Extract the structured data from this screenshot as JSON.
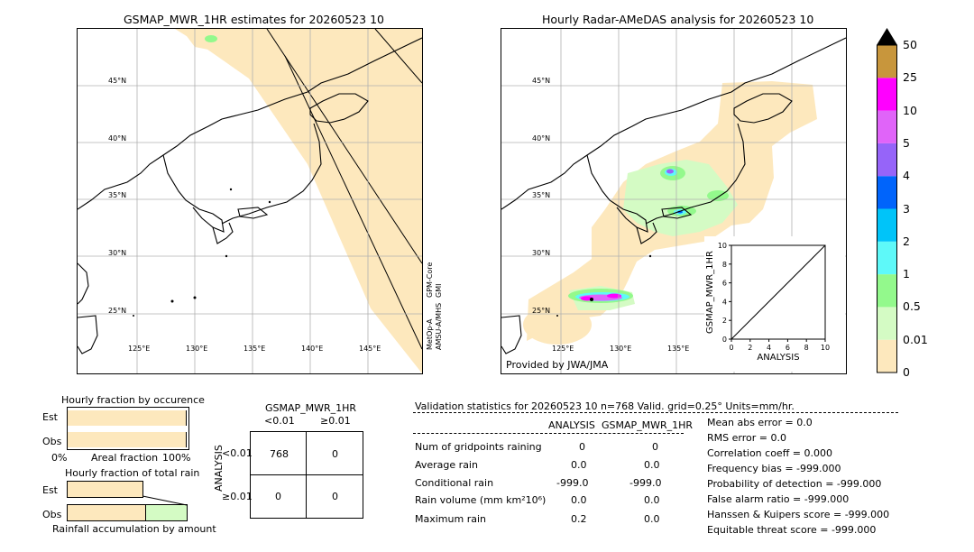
{
  "colors": {
    "no_rain": "#fde8bd",
    "light_green": "#d4fbc4",
    "green": "#93f98c",
    "cyan": "#5ef9f9",
    "sky": "#00c4f9",
    "blue": "#0064fb",
    "violet": "#9664f9",
    "purple": "#e064f9",
    "magenta": "#ff00ff",
    "gold": "#c8963c",
    "land": "#000000",
    "grid": "#b0b0b0"
  },
  "left_map": {
    "title": "GSMAP_MWR_1HR estimates for 20260523 10",
    "lat_labels": [
      "45°N",
      "40°N",
      "35°N",
      "30°N",
      "25°N"
    ],
    "lon_labels": [
      "125°E",
      "130°E",
      "135°E",
      "140°E",
      "145°E"
    ],
    "sensor_1": "GPM-Core",
    "sensor_1b": "GMI",
    "sensor_2": "MetOp-A",
    "sensor_2b": "AMSU-A/MHS"
  },
  "right_map": {
    "title": "Hourly Radar-AMeDAS analysis for 20260523 10",
    "lat_labels": [
      "45°N",
      "40°N",
      "35°N",
      "30°N",
      "25°N"
    ],
    "lon_labels": [
      "125°E",
      "130°E",
      "135°E"
    ],
    "provider": "Provided by JWA/JMA"
  },
  "colorbar": {
    "labels": [
      "50",
      "25",
      "10",
      "5",
      "4",
      "3",
      "2",
      "1",
      "0.5",
      "0.01",
      "0"
    ]
  },
  "chart_data": [
    {
      "type": "scatter",
      "title": "",
      "xlabel": "ANALYSIS",
      "ylabel": "GSMAP_MWR_1HR",
      "xlim": [
        0,
        10
      ],
      "ylim": [
        0,
        10
      ],
      "x_ticks": [
        "0",
        "2",
        "4",
        "6",
        "8",
        "10"
      ],
      "y_ticks": [
        "0",
        "2",
        "4",
        "6",
        "8",
        "10"
      ],
      "diagonal": [
        [
          0,
          0
        ],
        [
          10,
          10
        ]
      ],
      "points": []
    },
    {
      "type": "bar",
      "title": "Hourly fraction by occurence",
      "categories": [
        "Est",
        "Obs"
      ],
      "values": [
        0.99,
        0.99
      ],
      "xlabel": "Areal fraction",
      "x_ticks": [
        "0%",
        "100%"
      ],
      "xlim": [
        0,
        1
      ]
    },
    {
      "type": "bar",
      "title": "Hourly fraction of total rain",
      "categories": [
        "Est",
        "Obs"
      ],
      "values": [
        0.63,
        0.65
      ],
      "xlabel": "Rainfall accumulation by amount",
      "xlim": [
        0,
        1
      ]
    },
    {
      "type": "table",
      "title": "GSMAP_MWR_1HR",
      "col_headers": [
        "<0.01",
        "≥0.01"
      ],
      "row_axis_label": "ANALYSIS",
      "row_headers": [
        "<0.01",
        "≥0.01"
      ],
      "cells": [
        [
          "768",
          "0"
        ],
        [
          "0",
          "0"
        ]
      ]
    }
  ],
  "validation": {
    "header": "Validation statistics for 20260523 10  n=768 Valid. grid=0.25° Units=mm/hr.",
    "col_analysis": "ANALYSIS",
    "col_gsmap": "GSMAP_MWR_1HR",
    "rows": [
      {
        "label": "Num of gridpoints raining",
        "analysis": "0",
        "gsmap": "0"
      },
      {
        "label": "Average rain",
        "analysis": "0.0",
        "gsmap": "0.0"
      },
      {
        "label": "Conditional rain",
        "analysis": "-999.0",
        "gsmap": "-999.0"
      },
      {
        "label": "Rain volume (mm km²10⁶)",
        "analysis": "0.0",
        "gsmap": "0.0"
      },
      {
        "label": "Maximum rain",
        "analysis": "0.2",
        "gsmap": "0.0"
      }
    ],
    "scores": [
      "Mean abs error =    0.0",
      "RMS error =    0.0",
      "Correlation coeff =  0.000",
      "Frequency bias = -999.000",
      "Probability of detection = -999.000",
      "False alarm ratio = -999.000",
      "Hanssen & Kuipers score = -999.000",
      "Equitable threat score = -999.000"
    ]
  }
}
